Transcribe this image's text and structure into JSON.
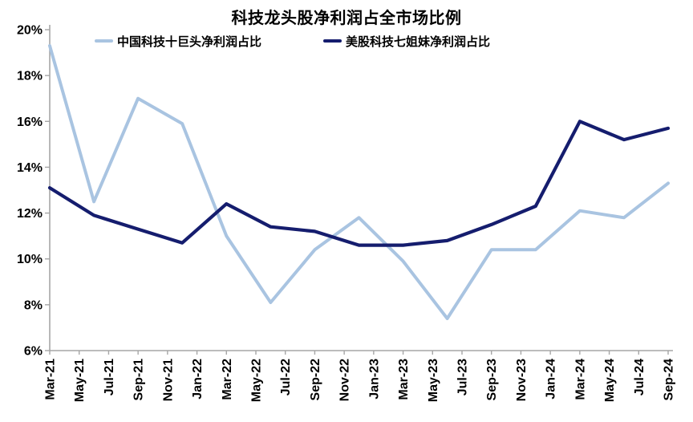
{
  "title": "科技龙头股净利润占全市场比例",
  "legend": [
    {
      "label": "中国科技十巨头净利润占比",
      "color": "#a9c4e1"
    },
    {
      "label": "美股科技七姐妹净利润占比",
      "color": "#151d6e"
    }
  ],
  "axis": {
    "line_color": "#a6a6a6",
    "label_color": "#000000"
  },
  "chart_data": {
    "type": "line",
    "title": "科技龙头股净利润占全市场比例",
    "x": [
      "Mar-21",
      "Jun-21",
      "Sep-21",
      "Dec-21",
      "Mar-22",
      "Jun-22",
      "Sep-22",
      "Dec-22",
      "Mar-23",
      "Jun-23",
      "Sep-23",
      "Dec-23",
      "Mar-24",
      "Jun-24",
      "Sep-24"
    ],
    "series": [
      {
        "name": "中国科技十巨头净利润占比",
        "color": "#a9c4e1",
        "values": [
          19.3,
          12.5,
          17.0,
          15.9,
          11.0,
          8.1,
          10.4,
          11.8,
          9.9,
          7.4,
          10.4,
          10.4,
          12.1,
          11.8,
          13.3
        ]
      },
      {
        "name": "美股科技七姐妹净利润占比",
        "color": "#151d6e",
        "values": [
          13.1,
          11.9,
          11.3,
          10.7,
          12.4,
          11.4,
          11.2,
          10.6,
          10.6,
          10.8,
          11.5,
          12.3,
          16.0,
          15.2,
          15.7
        ]
      }
    ],
    "ylim": [
      6,
      20
    ],
    "y_ticks": [
      20,
      18,
      16,
      14,
      12,
      10,
      8,
      6
    ],
    "y_tick_labels": [
      "20%",
      "18%",
      "16%",
      "14%",
      "12%",
      "10%",
      "8%",
      "6%"
    ],
    "x_axis_tick_labels": [
      "Mar-21",
      "May-21",
      "Jul-21",
      "Sep-21",
      "Nov-21",
      "Jan-22",
      "Mar-22",
      "May-22",
      "Jul-22",
      "Sep-22",
      "Nov-22",
      "Jan-23",
      "Mar-23",
      "May-23",
      "Jul-23",
      "Sep-23",
      "Nov-23",
      "Jan-24",
      "Mar-24",
      "May-24",
      "Jul-24",
      "Sep-24"
    ],
    "grid": false,
    "legend_position": "top-left",
    "xlabel": "",
    "ylabel": ""
  }
}
